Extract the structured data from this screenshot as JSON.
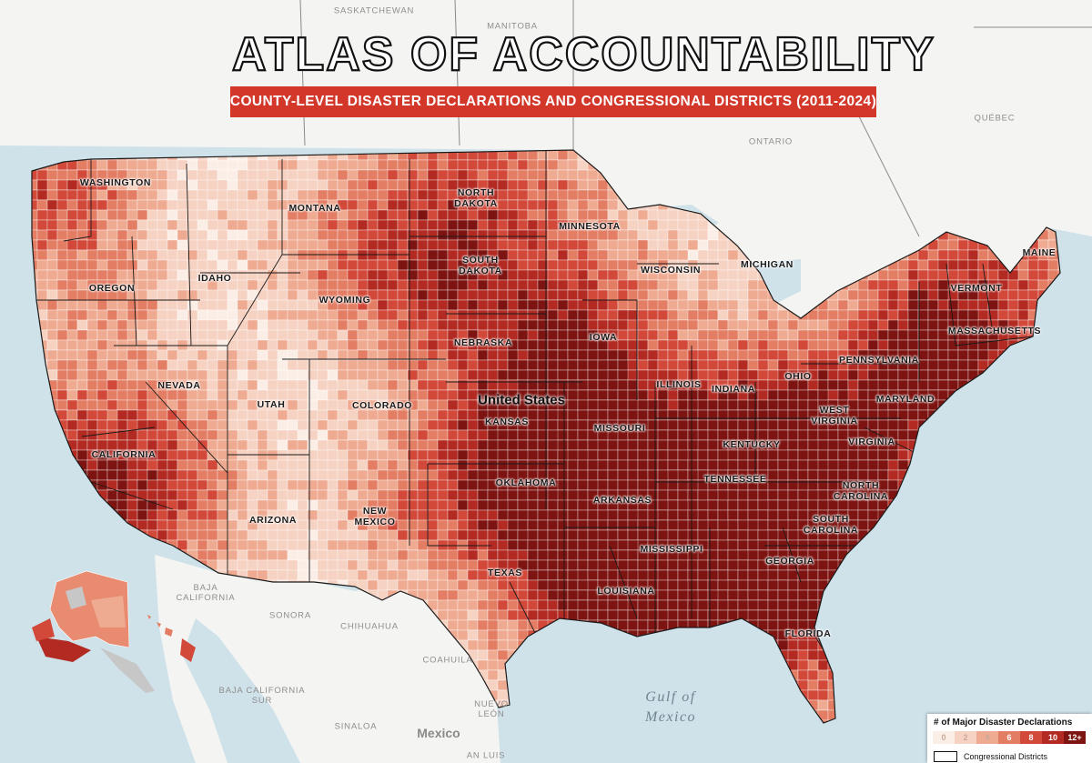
{
  "title": "ATLAS OF ACCOUNTABILITY",
  "subtitle": "COUNTY-LEVEL DISASTER DECLARATIONS AND CONGRESSIONAL DISTRICTS (2011-2024)",
  "country_label": "United States",
  "states": {
    "washington": "WASHINGTON",
    "oregon": "OREGON",
    "california": "CALIFORNIA",
    "nevada": "NEVADA",
    "idaho": "IDAHO",
    "montana": "MONTANA",
    "wyoming": "WYOMING",
    "utah": "UTAH",
    "arizona": "ARIZONA",
    "colorado": "COLORADO",
    "new_mexico": "NEW\nMEXICO",
    "north_dakota": "NORTH\nDAKOTA",
    "south_dakota": "SOUTH\nDAKOTA",
    "nebraska": "NEBRASKA",
    "kansas": "KANSAS",
    "oklahoma": "OKLAHOMA",
    "texas": "TEXAS",
    "minnesota": "MINNESOTA",
    "iowa": "IOWA",
    "missouri": "MISSOURI",
    "arkansas": "ARKANSAS",
    "louisiana": "LOUISIANA",
    "wisconsin": "WISCONSIN",
    "illinois": "ILLINOIS",
    "michigan": "MICHIGAN",
    "indiana": "INDIANA",
    "ohio": "OHIO",
    "kentucky": "KENTUCKY",
    "tennessee": "TENNESSEE",
    "mississippi": "MISSISSIPPI",
    "georgia": "GEORGIA",
    "florida": "FLORIDA",
    "south_carolina": "SOUTH\nCAROLINA",
    "north_carolina": "NORTH\nCAROLINA",
    "virginia": "VIRGINIA",
    "west_virginia": "WEST\nVIRGINIA",
    "pennsylvania": "PENNSYLVANIA",
    "maryland": "MARYLAND",
    "massachusetts": "MASSACHUSETTS",
    "vermont": "VERMONT",
    "maine": "MAINE"
  },
  "foreign": {
    "saskatchewan": "SASKATCHEWAN",
    "manitoba": "MANITOBA",
    "ontario": "ONTARIO",
    "quebec": "QUÉBEC",
    "baja_california": "BAJA\nCALIFORNIA",
    "sonora": "SONORA",
    "chihuahua": "CHIHUAHUA",
    "coahuila": "COAHUILA",
    "baja_california_sur": "BAJA CALIFORNIA\nSUR",
    "sinaloa": "SINALOA",
    "nuevo_leon": "NUEVO\nLEÓN",
    "san_luis": "AN LUIS",
    "mexico": "Mexico"
  },
  "water": {
    "gulf": "Gulf of\nMexico"
  },
  "legend": {
    "title": "# of Major Disaster Declarations",
    "ramp": [
      {
        "label": "0",
        "color": "#fbeee7"
      },
      {
        "label": "2",
        "color": "#f6d2c2"
      },
      {
        "label": "4",
        "color": "#efab92"
      },
      {
        "label": "6",
        "color": "#e37d63"
      },
      {
        "label": "8",
        "color": "#d2493a"
      },
      {
        "label": "10",
        "color": "#b22a22"
      },
      {
        "label": "12+",
        "color": "#7d1411"
      }
    ],
    "district_note": "Congressional Districts"
  },
  "colors": {
    "water": "#cfe2ea",
    "land": "#f4f4f2",
    "border": "#1a1a1a",
    "accent": "#d2372a"
  }
}
